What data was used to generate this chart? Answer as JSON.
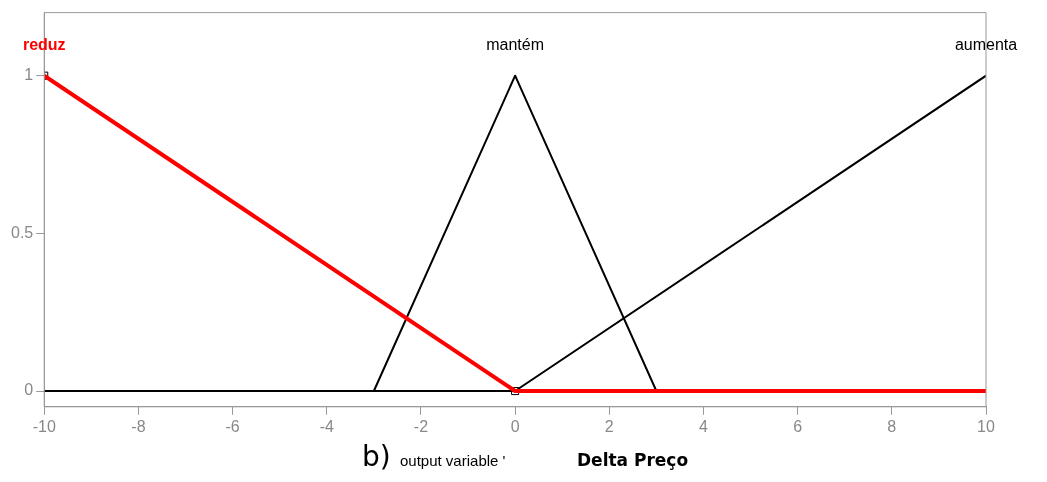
{
  "chart_data": {
    "type": "line",
    "xlabel": "output variable '",
    "annotations": [
      "b)",
      "Delta Preço"
    ],
    "xlim": [
      -10,
      10
    ],
    "xticks": [
      -10,
      -8,
      -6,
      -4,
      -2,
      0,
      2,
      4,
      6,
      8,
      10
    ],
    "ylim": [
      -0.05,
      1.2
    ],
    "yticks": [
      0,
      0.5,
      1
    ],
    "grid": false,
    "legend": false,
    "marker": "none",
    "line_style": "solid",
    "series": [
      {
        "name": "reduz",
        "color": "#ff0000",
        "x": [
          -10,
          0,
          10
        ],
        "values": [
          1,
          0,
          0
        ]
      },
      {
        "name": "mantém",
        "color": "#000000",
        "x": [
          -10,
          -3,
          0,
          3,
          10
        ],
        "values": [
          0,
          0,
          1,
          0,
          0
        ]
      },
      {
        "name": "aumenta",
        "color": "#000000",
        "x": [
          -10,
          0,
          10
        ],
        "values": [
          0,
          0,
          1
        ]
      },
      {
        "type": "scatter",
        "marker": "square",
        "color": "#000000",
        "x": [
          -10,
          0
        ],
        "values": [
          1,
          0
        ]
      }
    ]
  }
}
